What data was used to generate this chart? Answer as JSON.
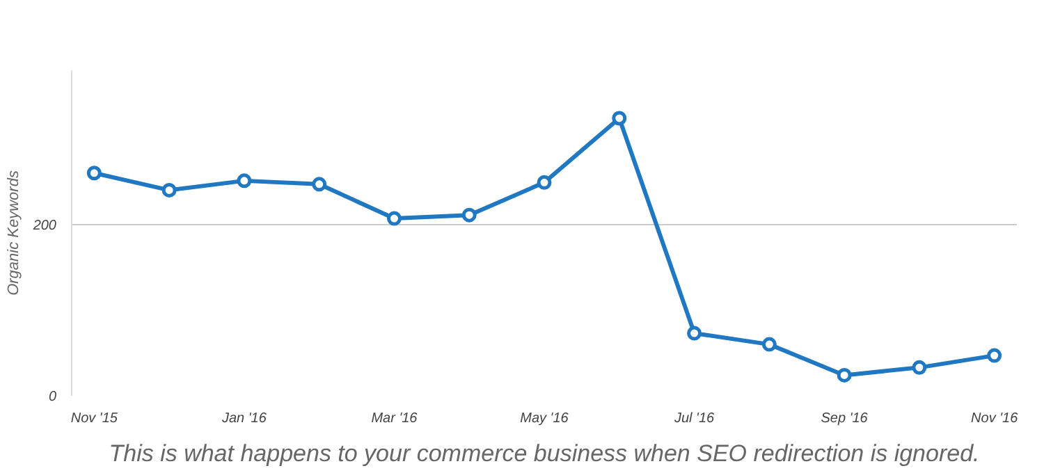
{
  "chart_data": {
    "type": "line",
    "ylabel": "Organic Keywords",
    "categories": [
      "Nov '15",
      null,
      "Jan '16",
      null,
      "Mar '16",
      null,
      "May '16",
      null,
      "Jul '16",
      null,
      "Sep '16",
      null,
      "Nov '16"
    ],
    "series": [
      {
        "color": "#1f78c1",
        "values": [
          260,
          240,
          251,
          247,
          207,
          211,
          249,
          324,
          73,
          60,
          24,
          33,
          47
        ]
      }
    ],
    "ylim": [
      0,
      380
    ],
    "yticks": [
      0,
      200
    ],
    "grid": "y",
    "marker": "circle",
    "line_style": "solid",
    "annotations": [
      "This is what happens to your commerce business when SEO redirection is ignored."
    ]
  }
}
